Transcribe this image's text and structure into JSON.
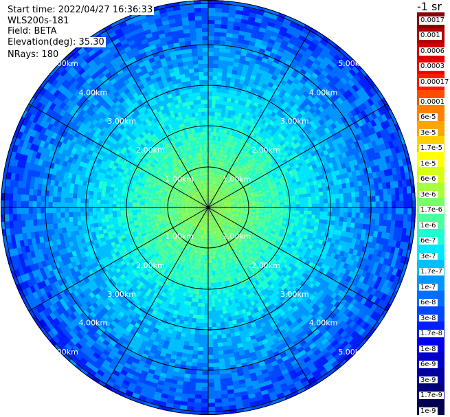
{
  "info": {
    "start_time": "Start time: 2022/04/27 16:36:33",
    "device": "WLS200s-181",
    "field": "Field: BETA",
    "elevation": "Elevation(deg): 35.30",
    "nrays": "NRays: 180"
  },
  "colorbar": {
    "unit": "-1 sr",
    "segments": [
      {
        "label": "0.0017",
        "color": "#8b0000"
      },
      {
        "label": "0.001",
        "color": "#b30000"
      },
      {
        "label": "0.0006",
        "color": "#d40000"
      },
      {
        "label": "0.0003",
        "color": "#f20000"
      },
      {
        "label": "0.00017",
        "color": "#ff1a00"
      },
      {
        "label": "0.0001",
        "color": "#ff4d00"
      },
      {
        "label": "6e-5",
        "color": "#ff8000"
      },
      {
        "label": "3e-5",
        "color": "#ffa500"
      },
      {
        "label": "1.7e-5",
        "color": "#ffd000"
      },
      {
        "label": "1e-5",
        "color": "#ffff00"
      },
      {
        "label": "6e-6",
        "color": "#d8ff1a"
      },
      {
        "label": "3e-6",
        "color": "#a8ff3c"
      },
      {
        "label": "1.7e-6",
        "color": "#7cff6a"
      },
      {
        "label": "1e-6",
        "color": "#4effa0"
      },
      {
        "label": "6e-7",
        "color": "#1effd2"
      },
      {
        "label": "3e-7",
        "color": "#00e6ff"
      },
      {
        "label": "1.7e-7",
        "color": "#00bfff"
      },
      {
        "label": "1e-7",
        "color": "#0096ff"
      },
      {
        "label": "6e-8",
        "color": "#006eff"
      },
      {
        "label": "3e-8",
        "color": "#0046ff"
      },
      {
        "label": "1.7e-8",
        "color": "#001eff"
      },
      {
        "label": "1e-8",
        "color": "#0000f0"
      },
      {
        "label": "6e-9",
        "color": "#0000c8"
      },
      {
        "label": "3e-9",
        "color": "#0000a0"
      },
      {
        "label": "1.7e-9",
        "color": "#000078"
      },
      {
        "label": "1e-9",
        "color": "#000050"
      }
    ]
  },
  "range_labels": [
    "1.00km",
    "2.00km",
    "3.00km",
    "4.00km",
    "5.00km"
  ]
}
